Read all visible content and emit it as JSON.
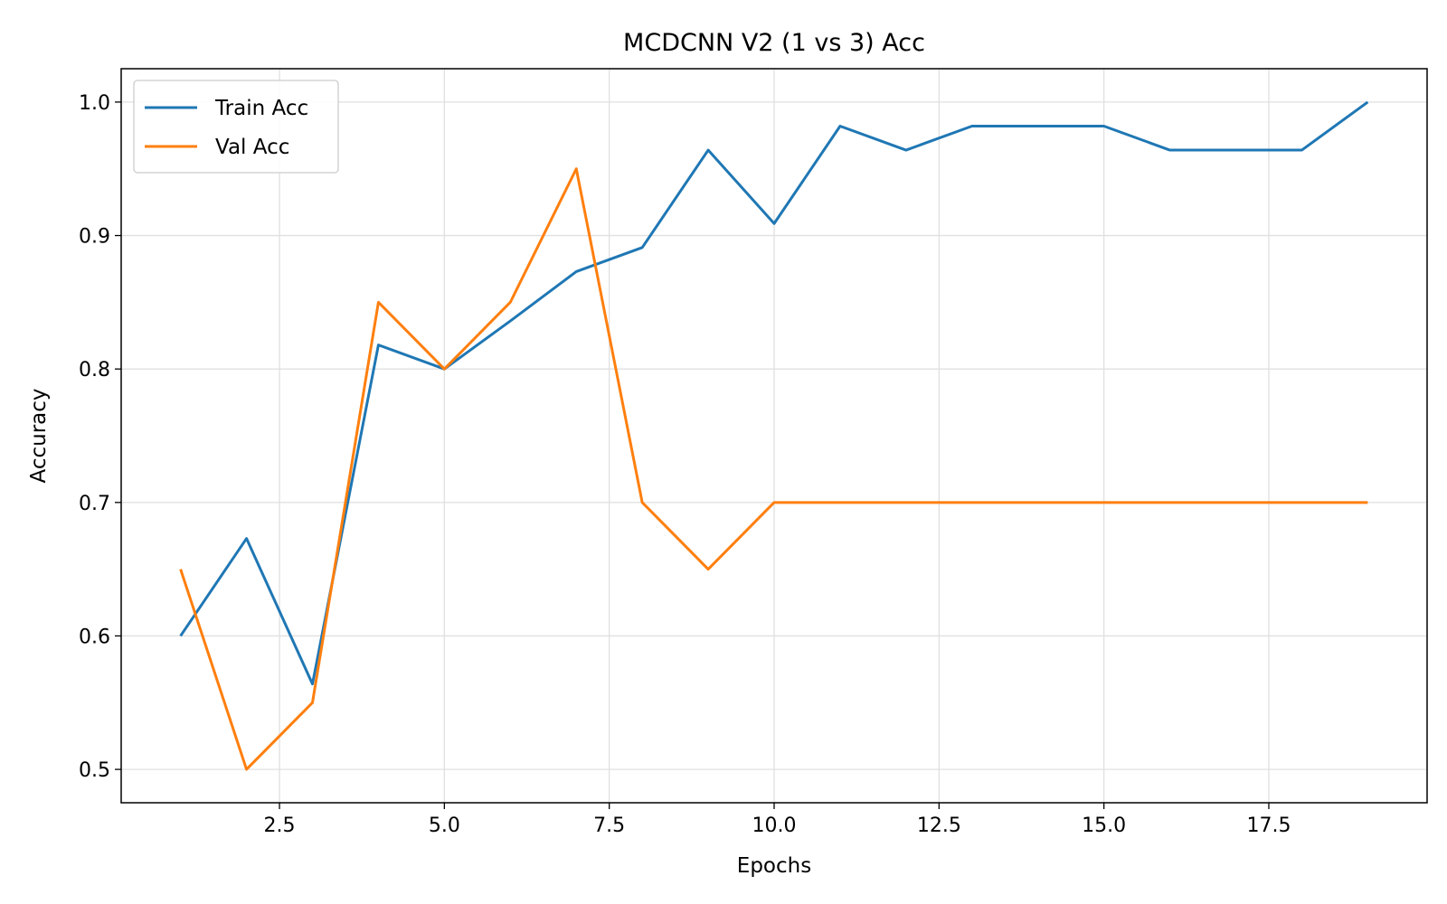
{
  "chart_data": {
    "type": "line",
    "title": "MCDCNN V2 (1 vs 3) Acc",
    "xlabel": "Epochs",
    "ylabel": "Accuracy",
    "xlim": [
      0.1,
      19.9
    ],
    "ylim": [
      0.475,
      1.025
    ],
    "grid": true,
    "legend_position": "top-left",
    "x_ticks": [
      2.5,
      5.0,
      7.5,
      10.0,
      12.5,
      15.0,
      17.5
    ],
    "x_tick_labels": [
      "2.5",
      "5.0",
      "7.5",
      "10.0",
      "12.5",
      "15.0",
      "17.5"
    ],
    "y_ticks": [
      0.5,
      0.6,
      0.7,
      0.8,
      0.9,
      1.0
    ],
    "y_tick_labels": [
      "0.5",
      "0.6",
      "0.7",
      "0.8",
      "0.9",
      "1.0"
    ],
    "x": [
      1,
      2,
      3,
      4,
      5,
      6,
      7,
      8,
      9,
      10,
      11,
      12,
      13,
      14,
      15,
      16,
      17,
      18,
      19
    ],
    "series": [
      {
        "name": "Train Acc",
        "color": "#1f77b4",
        "values": [
          0.6,
          0.673,
          0.564,
          0.818,
          0.8,
          0.836,
          0.873,
          0.891,
          0.964,
          0.909,
          0.982,
          0.964,
          0.982,
          0.982,
          0.982,
          0.964,
          0.964,
          0.964,
          1.0
        ]
      },
      {
        "name": "Val Acc",
        "color": "#ff7f0e",
        "values": [
          0.65,
          0.5,
          0.55,
          0.85,
          0.8,
          0.85,
          0.95,
          0.7,
          0.65,
          0.7,
          0.7,
          0.7,
          0.7,
          0.7,
          0.7,
          0.7,
          0.7,
          0.7,
          0.7
        ]
      }
    ]
  }
}
